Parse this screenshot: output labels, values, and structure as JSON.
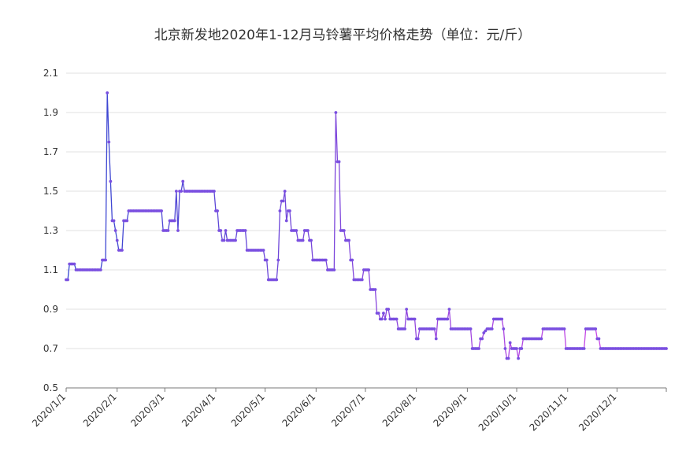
{
  "chart_data": {
    "type": "line",
    "title": "北京新发地2020年1-12月马铃薯平均价格走势（单位：元/斤）",
    "xlabel": "",
    "ylabel": "",
    "ylim": [
      0.5,
      2.1
    ],
    "yticks": [
      "0.5",
      "0.7",
      "0.9",
      "1.1",
      "1.3",
      "1.5",
      "1.7",
      "1.9",
      "2.1"
    ],
    "xticks": [
      {
        "label": "2020/1/1",
        "date": "2020-01-01"
      },
      {
        "label": "2020/2/1",
        "date": "2020-02-01"
      },
      {
        "label": "2020/3/1",
        "date": "2020-03-01"
      },
      {
        "label": "2020/4/1",
        "date": "2020-04-01"
      },
      {
        "label": "2020/5/1",
        "date": "2020-05-01"
      },
      {
        "label": "2020/6/1",
        "date": "2020-06-01"
      },
      {
        "label": "2020/7/1",
        "date": "2020-07-01"
      },
      {
        "label": "2020/8/1",
        "date": "2020-08-01"
      },
      {
        "label": "2020/9/1",
        "date": "2020-09-01"
      },
      {
        "label": "2020/10/1",
        "date": "2020-10-01"
      },
      {
        "label": "2020/11/1",
        "date": "2020-11-01"
      },
      {
        "label": "2020/12/1",
        "date": "2020-12-01"
      }
    ],
    "grid": true,
    "legend": "none",
    "line_color_start": "#3347d1",
    "line_color_end": "#d946e8",
    "marker_color": "#7a4fe0",
    "points": [
      [
        "2020-01-01",
        1.05
      ],
      [
        "2020-01-02",
        1.05
      ],
      [
        "2020-01-03",
        1.13
      ],
      [
        "2020-01-06",
        1.13
      ],
      [
        "2020-01-07",
        1.1
      ],
      [
        "2020-01-22",
        1.1
      ],
      [
        "2020-01-23",
        1.15
      ],
      [
        "2020-01-25",
        1.15
      ],
      [
        "2020-01-26",
        2.0
      ],
      [
        "2020-01-27",
        1.75
      ],
      [
        "2020-01-28",
        1.55
      ],
      [
        "2020-01-29",
        1.35
      ],
      [
        "2020-01-30",
        1.35
      ],
      [
        "2020-01-31",
        1.3
      ],
      [
        "2020-02-01",
        1.25
      ],
      [
        "2020-02-02",
        1.2
      ],
      [
        "2020-02-04",
        1.2
      ],
      [
        "2020-02-05",
        1.35
      ],
      [
        "2020-02-07",
        1.35
      ],
      [
        "2020-02-08",
        1.4
      ],
      [
        "2020-02-28",
        1.4
      ],
      [
        "2020-02-29",
        1.3
      ],
      [
        "2020-03-03",
        1.3
      ],
      [
        "2020-03-04",
        1.35
      ],
      [
        "2020-03-07",
        1.35
      ],
      [
        "2020-03-08",
        1.5
      ],
      [
        "2020-03-09",
        1.3
      ],
      [
        "2020-03-10",
        1.5
      ],
      [
        "2020-03-11",
        1.5
      ],
      [
        "2020-03-12",
        1.55
      ],
      [
        "2020-03-13",
        1.5
      ],
      [
        "2020-03-31",
        1.5
      ],
      [
        "2020-04-01",
        1.4
      ],
      [
        "2020-04-02",
        1.4
      ],
      [
        "2020-04-03",
        1.3
      ],
      [
        "2020-04-04",
        1.3
      ],
      [
        "2020-04-05",
        1.25
      ],
      [
        "2020-04-06",
        1.25
      ],
      [
        "2020-04-07",
        1.3
      ],
      [
        "2020-04-08",
        1.25
      ],
      [
        "2020-04-13",
        1.25
      ],
      [
        "2020-04-14",
        1.3
      ],
      [
        "2020-04-19",
        1.3
      ],
      [
        "2020-04-20",
        1.2
      ],
      [
        "2020-04-30",
        1.2
      ],
      [
        "2020-05-01",
        1.15
      ],
      [
        "2020-05-02",
        1.15
      ],
      [
        "2020-05-03",
        1.05
      ],
      [
        "2020-05-08",
        1.05
      ],
      [
        "2020-05-09",
        1.15
      ],
      [
        "2020-05-10",
        1.4
      ],
      [
        "2020-05-11",
        1.45
      ],
      [
        "2020-05-12",
        1.45
      ],
      [
        "2020-05-13",
        1.5
      ],
      [
        "2020-05-14",
        1.35
      ],
      [
        "2020-05-15",
        1.4
      ],
      [
        "2020-05-16",
        1.4
      ],
      [
        "2020-05-17",
        1.3
      ],
      [
        "2020-05-20",
        1.3
      ],
      [
        "2020-05-21",
        1.25
      ],
      [
        "2020-05-24",
        1.25
      ],
      [
        "2020-05-25",
        1.3
      ],
      [
        "2020-05-27",
        1.3
      ],
      [
        "2020-05-28",
        1.25
      ],
      [
        "2020-05-29",
        1.25
      ],
      [
        "2020-05-30",
        1.15
      ],
      [
        "2020-06-07",
        1.15
      ],
      [
        "2020-06-08",
        1.1
      ],
      [
        "2020-06-12",
        1.1
      ],
      [
        "2020-06-13",
        1.9
      ],
      [
        "2020-06-14",
        1.65
      ],
      [
        "2020-06-15",
        1.65
      ],
      [
        "2020-06-16",
        1.3
      ],
      [
        "2020-06-18",
        1.3
      ],
      [
        "2020-06-19",
        1.25
      ],
      [
        "2020-06-21",
        1.25
      ],
      [
        "2020-06-22",
        1.15
      ],
      [
        "2020-06-23",
        1.15
      ],
      [
        "2020-06-24",
        1.05
      ],
      [
        "2020-06-29",
        1.05
      ],
      [
        "2020-06-30",
        1.1
      ],
      [
        "2020-07-03",
        1.1
      ],
      [
        "2020-07-04",
        1.0
      ],
      [
        "2020-07-07",
        1.0
      ],
      [
        "2020-07-08",
        0.88
      ],
      [
        "2020-07-09",
        0.88
      ],
      [
        "2020-07-10",
        0.85
      ],
      [
        "2020-07-11",
        0.85
      ],
      [
        "2020-07-12",
        0.88
      ],
      [
        "2020-07-13",
        0.85
      ],
      [
        "2020-07-14",
        0.9
      ],
      [
        "2020-07-15",
        0.9
      ],
      [
        "2020-07-16",
        0.85
      ],
      [
        "2020-07-20",
        0.85
      ],
      [
        "2020-07-21",
        0.8
      ],
      [
        "2020-07-25",
        0.8
      ],
      [
        "2020-07-26",
        0.9
      ],
      [
        "2020-07-27",
        0.85
      ],
      [
        "2020-07-31",
        0.85
      ],
      [
        "2020-08-01",
        0.75
      ],
      [
        "2020-08-02",
        0.75
      ],
      [
        "2020-08-03",
        0.8
      ],
      [
        "2020-08-12",
        0.8
      ],
      [
        "2020-08-13",
        0.75
      ],
      [
        "2020-08-14",
        0.85
      ],
      [
        "2020-08-20",
        0.85
      ],
      [
        "2020-08-21",
        0.9
      ],
      [
        "2020-08-22",
        0.8
      ],
      [
        "2020-09-03",
        0.8
      ],
      [
        "2020-09-04",
        0.7
      ],
      [
        "2020-09-08",
        0.7
      ],
      [
        "2020-09-09",
        0.75
      ],
      [
        "2020-09-10",
        0.75
      ],
      [
        "2020-09-11",
        0.78
      ],
      [
        "2020-09-13",
        0.8
      ],
      [
        "2020-09-16",
        0.8
      ],
      [
        "2020-09-17",
        0.85
      ],
      [
        "2020-09-22",
        0.85
      ],
      [
        "2020-09-23",
        0.8
      ],
      [
        "2020-09-24",
        0.7
      ],
      [
        "2020-09-25",
        0.65
      ],
      [
        "2020-09-26",
        0.65
      ],
      [
        "2020-09-27",
        0.73
      ],
      [
        "2020-09-28",
        0.7
      ],
      [
        "2020-10-01",
        0.7
      ],
      [
        "2020-10-02",
        0.65
      ],
      [
        "2020-10-03",
        0.7
      ],
      [
        "2020-10-04",
        0.7
      ],
      [
        "2020-10-05",
        0.75
      ],
      [
        "2020-10-16",
        0.75
      ],
      [
        "2020-10-17",
        0.8
      ],
      [
        "2020-10-30",
        0.8
      ],
      [
        "2020-10-31",
        0.7
      ],
      [
        "2020-11-11",
        0.7
      ],
      [
        "2020-11-12",
        0.8
      ],
      [
        "2020-11-18",
        0.8
      ],
      [
        "2020-11-19",
        0.75
      ],
      [
        "2020-11-20",
        0.75
      ],
      [
        "2020-11-21",
        0.7
      ],
      [
        "2020-12-31",
        0.7
      ]
    ]
  }
}
